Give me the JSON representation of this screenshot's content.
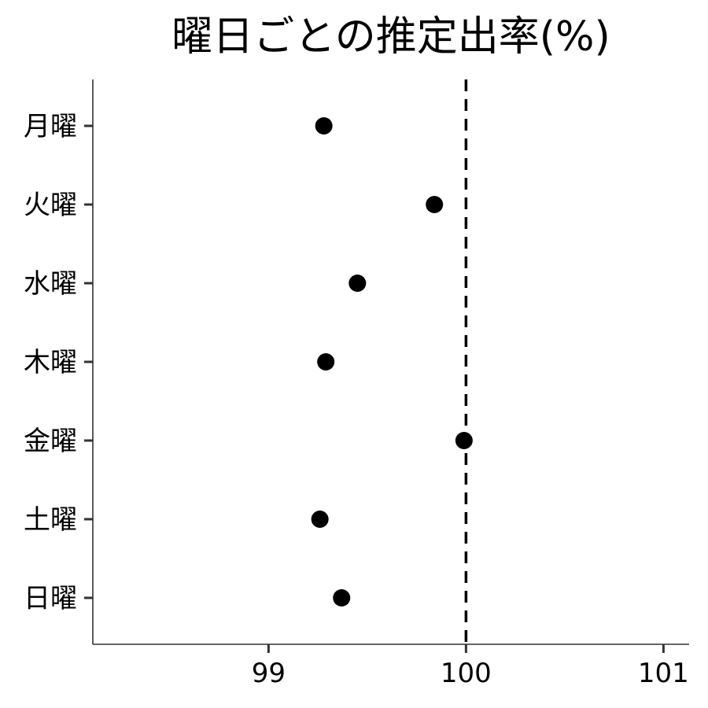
{
  "chart_data": {
    "type": "scatter",
    "title": "曜日ごとの推定出率(%)",
    "xlabel": "",
    "ylabel": "",
    "categories": [
      "月曜",
      "火曜",
      "水曜",
      "木曜",
      "金曜",
      "土曜",
      "日曜"
    ],
    "values": [
      99.28,
      99.84,
      99.45,
      99.29,
      99.99,
      99.26,
      99.37
    ],
    "xlim": [
      98.11,
      101.13
    ],
    "x_ticks": [
      99,
      100,
      101
    ],
    "x_tick_labels": [
      "99",
      "100",
      "101"
    ],
    "reference_line": {
      "x": 100,
      "style": "dashed"
    },
    "grid": false,
    "legend": "none",
    "colors": {
      "point": "#000000",
      "axis": "#333333",
      "reference": "#000000"
    }
  }
}
